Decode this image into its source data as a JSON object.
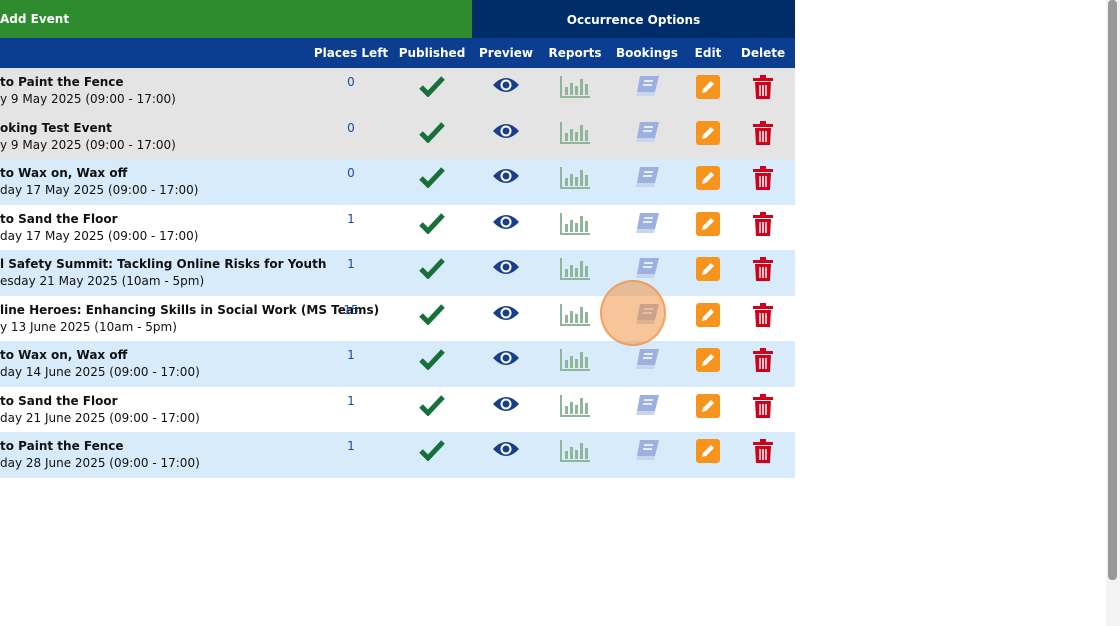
{
  "header": {
    "add_event": "Add Event",
    "occurrence_options": "Occurrence Options"
  },
  "columns": [
    "Places Left",
    "Published",
    "Preview",
    "Reports",
    "Bookings",
    "Edit",
    "Delete"
  ],
  "rows": [
    {
      "title": "to Paint the Fence",
      "date": "y 9 May 2025 (09:00 - 17:00)",
      "places": 0
    },
    {
      "title": "oking Test Event",
      "date": "y 9 May 2025 (09:00 - 17:00)",
      "places": 0
    },
    {
      "title": "to Wax on, Wax off",
      "date": "day 17 May 2025 (09:00 - 17:00)",
      "places": 0
    },
    {
      "title": "to Sand the Floor",
      "date": "day 17 May 2025 (09:00 - 17:00)",
      "places": 1
    },
    {
      "title": "l Safety Summit: Tackling Online Risks for Youth",
      "date": "esday 21 May 2025 (10am - 5pm)",
      "places": 1
    },
    {
      "title": "line Heroes: Enhancing Skills in Social Work (MS Teams)",
      "date": "y 13 June 2025 (10am - 5pm)",
      "places": 15
    },
    {
      "title": "to Wax on, Wax off",
      "date": "day 14 June 2025 (09:00 - 17:00)",
      "places": 1
    },
    {
      "title": "to Sand the Floor",
      "date": "day 21 June 2025 (09:00 - 17:00)",
      "places": 1
    },
    {
      "title": "to Paint the Fence",
      "date": "day 28 June 2025 (09:00 - 17:00)",
      "places": 1
    }
  ]
}
